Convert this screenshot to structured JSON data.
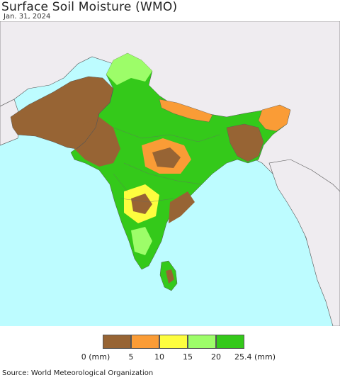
{
  "title": "Surface Soil Moisture (WMO)",
  "date": "Jan. 31, 2024",
  "source": "Source: World Meteorological Organization",
  "legend": {
    "unit_suffix": "(mm)",
    "labels": [
      "0 (mm)",
      "5",
      "10",
      "15",
      "20",
      "25.4 (mm)"
    ],
    "colors": [
      "#976434",
      "#fa9c36",
      "#fdfd3f",
      "#9dfd69",
      "#34c91a"
    ]
  },
  "colors": {
    "ocean": "#bdfcff",
    "land_outside": "#efecf0",
    "border": "#555555"
  }
}
